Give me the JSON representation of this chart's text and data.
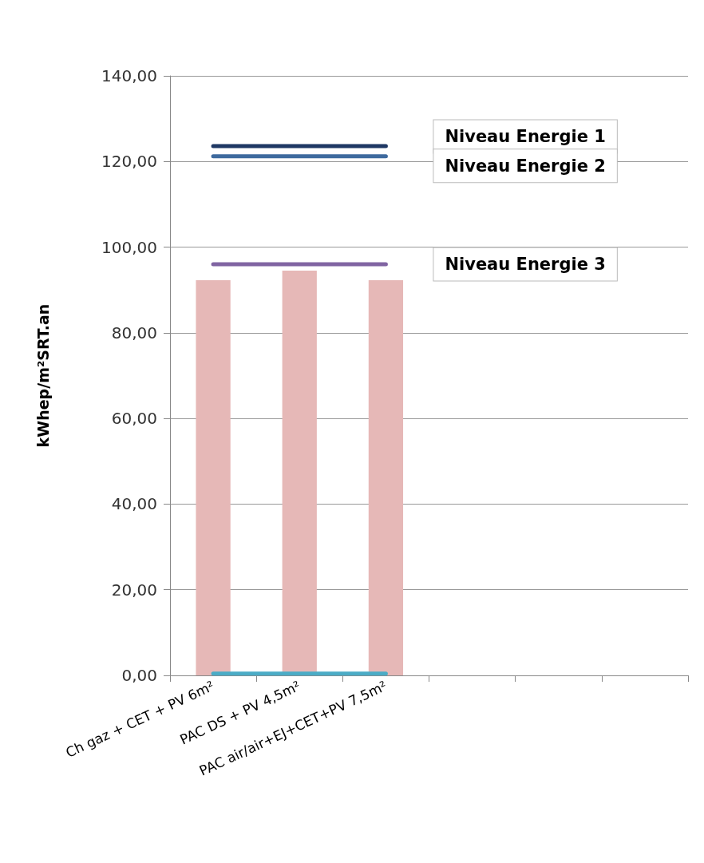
{
  "chart_data": {
    "type": "bar",
    "ylabel": "kWhep/m²SRT.an",
    "categories": [
      "Ch gaz + CET + PV 6m²",
      "PAC DS + PV 4,5m²",
      "PAC air/air+EJ+CET+PV 7,5m²",
      null,
      null,
      null
    ],
    "series": [
      {
        "color": "#e6b8b7",
        "values": [
          92.3,
          94.5,
          92.3,
          null,
          null,
          null
        ]
      },
      {
        "type": "line",
        "name": "Niveau Energie 1",
        "color": "#1f3864",
        "values": [
          123.6,
          123.6,
          123.6,
          null,
          null,
          null
        ]
      },
      {
        "type": "line",
        "name": "Niveau Energie 2",
        "color": "#3e6a9e",
        "values": [
          121.2,
          121.2,
          121.2,
          null,
          null,
          null
        ]
      },
      {
        "type": "line",
        "name": "Niveau Energie 3",
        "color": "#8064a2",
        "values": [
          96,
          96,
          96,
          null,
          null,
          null
        ]
      },
      {
        "type": "line",
        "color": "#4bacc6",
        "values": [
          0.4,
          0.4,
          0.4,
          null,
          null,
          null
        ]
      }
    ],
    "ylim": [
      0,
      140
    ],
    "yticks": [
      {
        "value": 0,
        "label": "0,00"
      },
      {
        "value": 20,
        "label": "20,00"
      },
      {
        "value": 40,
        "label": "40,00"
      },
      {
        "value": 60,
        "label": "60,00"
      },
      {
        "value": 80,
        "label": "80,00"
      },
      {
        "value": 100,
        "label": "100,00"
      },
      {
        "value": 120,
        "label": "120,00"
      },
      {
        "value": 140,
        "label": "140,00"
      }
    ],
    "grid": "y",
    "legend": false,
    "marker": "none",
    "line_style": "solid"
  }
}
